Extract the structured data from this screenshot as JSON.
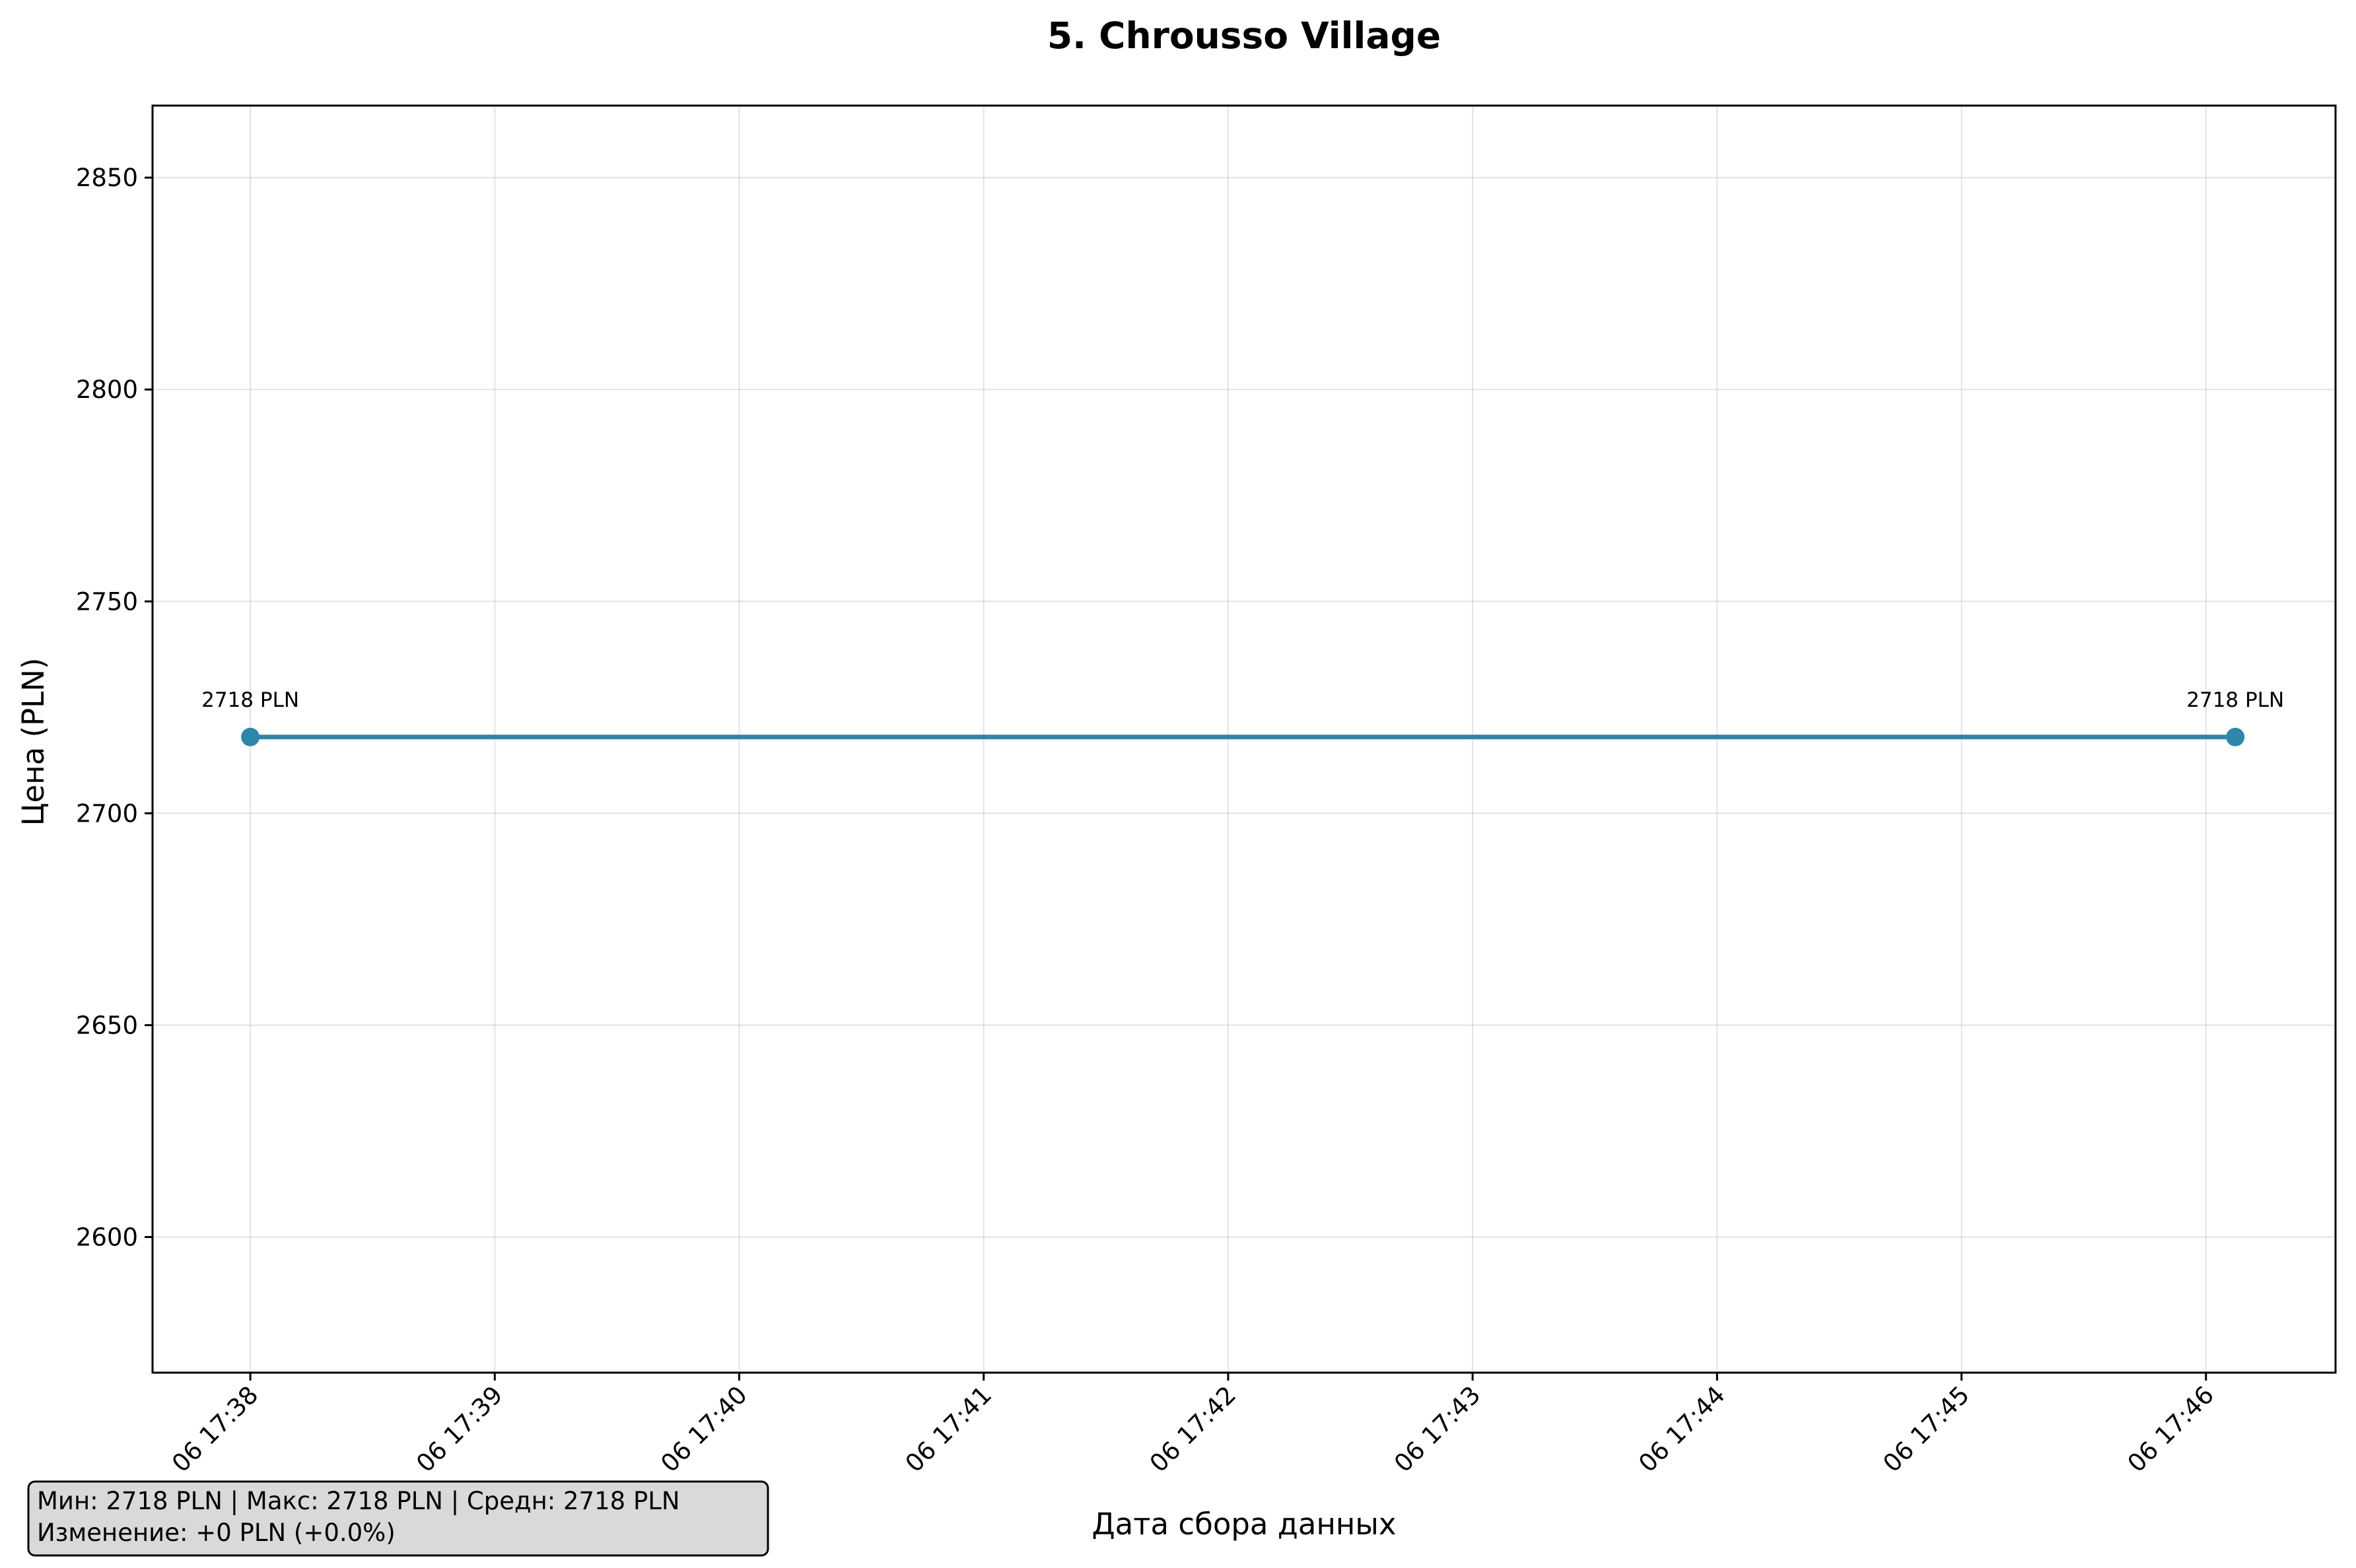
{
  "chart_data": {
    "type": "line",
    "title": "5. Chrousso Village",
    "xlabel": "Дата сбора данных",
    "ylabel": "Цена (PLN)",
    "x_tick_labels": [
      "06 17:38",
      "06 17:39",
      "06 17:40",
      "06 17:41",
      "06 17:42",
      "06 17:43",
      "06 17:44",
      "06 17:45",
      "06 17:46"
    ],
    "x_tick_values": [
      0,
      1,
      2,
      3,
      4,
      5,
      6,
      7,
      8
    ],
    "xlim": [
      -0.4,
      8.53
    ],
    "y_ticks": [
      2600,
      2650,
      2700,
      2750,
      2800,
      2850
    ],
    "ylim": [
      2568,
      2867
    ],
    "grid": true,
    "series": [
      {
        "name": "Цена",
        "color": "#2e86ab",
        "x": [
          0,
          8.12
        ],
        "y": [
          2718,
          2718
        ],
        "point_labels": [
          "2718 PLN",
          "2718 PLN"
        ]
      }
    ],
    "stats_box": {
      "line1": "Мин: 2718 PLN | Макс: 2718 PLN | Средн: 2718 PLN",
      "line2": "Изменение: +0 PLN (+0.0%)",
      "background": "#d9d9d9"
    }
  }
}
